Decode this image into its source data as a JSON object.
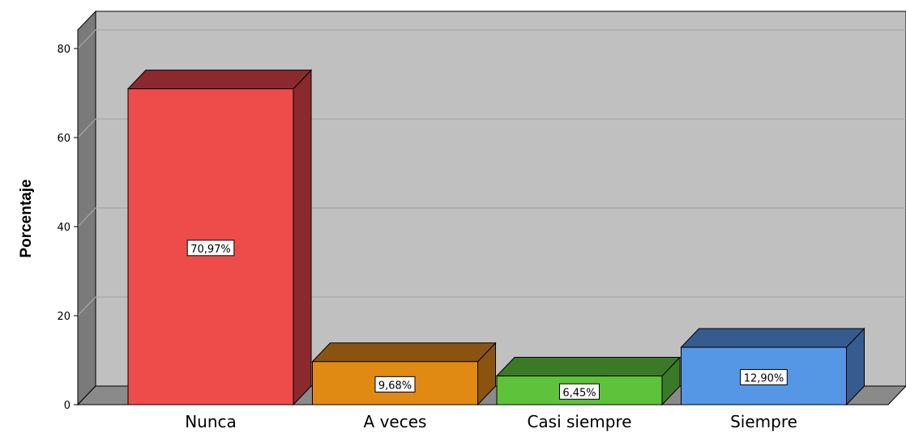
{
  "chart_data": {
    "type": "bar",
    "categories": [
      "Nunca",
      "A veces",
      "Casi siempre",
      "Siempre"
    ],
    "values": [
      70.97,
      9.68,
      6.45,
      12.9
    ],
    "data_labels": [
      "70,97%",
      "9,68%",
      "6,45%",
      "12,90%"
    ],
    "ylabel": "Porcentaje",
    "xlabel": "",
    "ylim": [
      0,
      80
    ],
    "yticks": [
      "0",
      "20",
      "40",
      "60",
      "80"
    ],
    "grid": true,
    "three_d": true,
    "colors": {
      "bars_front": [
        "#ee4b4b",
        "#e08a13",
        "#5ec23a",
        "#5597e5"
      ],
      "bars_side": [
        "#8b2a2e",
        "#8a5410",
        "#3a7a26",
        "#365b8f"
      ],
      "bars_top": [
        "#8b2a2e",
        "#8a5410",
        "#3a7a26",
        "#365b8f"
      ],
      "plot_back": "#c0c0c0",
      "plot_floor": "#8a8a8a",
      "plot_wall": "#7a7a7a",
      "gridline": "#a8a8a8"
    }
  }
}
